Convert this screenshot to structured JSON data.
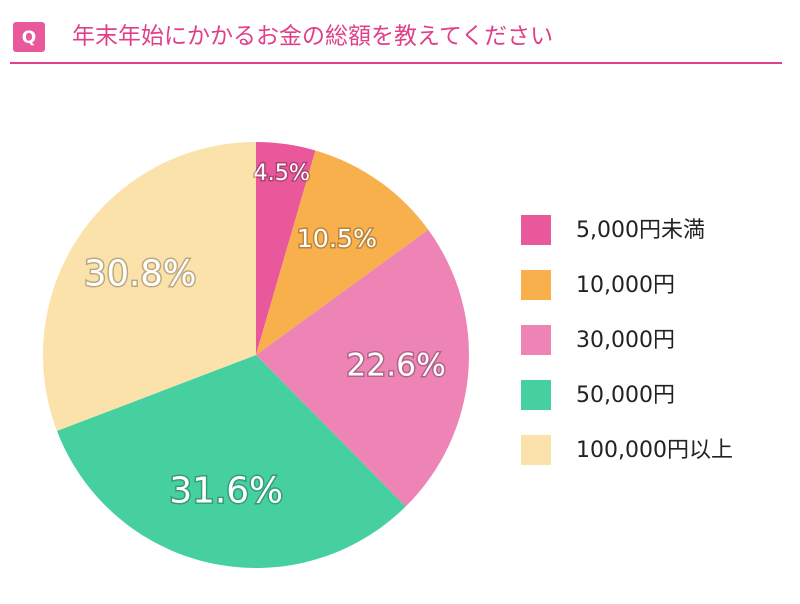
{
  "chart_data": {
    "type": "pie",
    "badge": "Q",
    "title": "年末年始にかかるお金の総額を教えてください",
    "categories": [
      "5,000円未満",
      "10,000円",
      "30,000円",
      "50,000円",
      "100,000円以上"
    ],
    "values": [
      4.5,
      10.5,
      22.6,
      31.6,
      30.8
    ],
    "value_labels": [
      "4.5%",
      "10.5%",
      "22.6%",
      "31.6%",
      "30.8%"
    ],
    "colors": [
      "#e9589b",
      "#f8b04d",
      "#ed84b5",
      "#46d09f",
      "#fbe1aa"
    ],
    "legend": "right"
  }
}
